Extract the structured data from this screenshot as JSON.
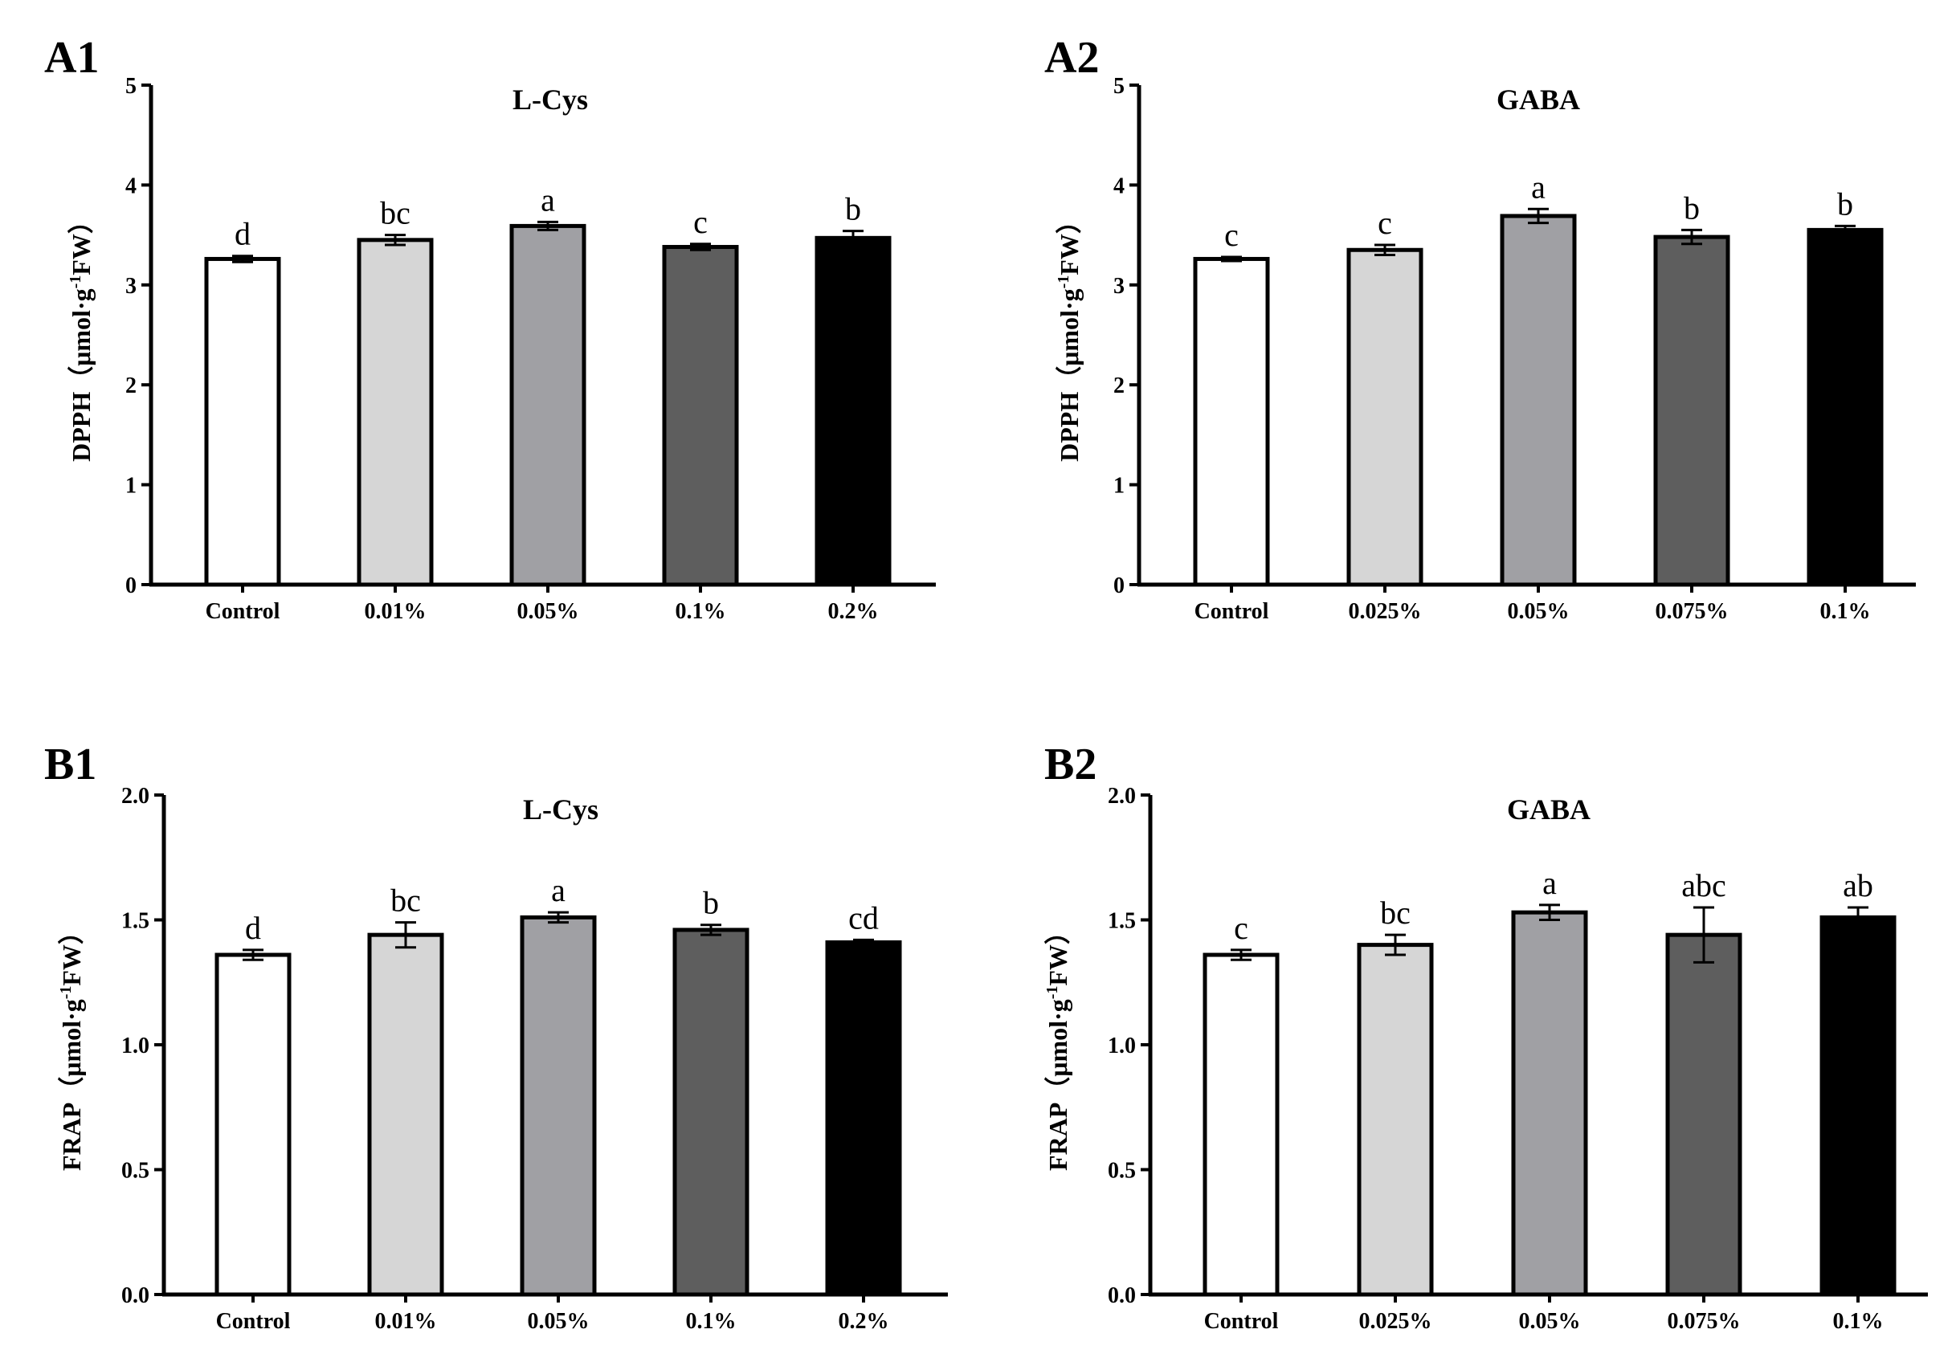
{
  "colors": [
    "#ffffff",
    "#d6d6d6",
    "#a0a0a4",
    "#5e5e5e",
    "#000000"
  ],
  "chart_data": [
    {
      "type": "bar",
      "panel": "A1",
      "title": "L-Cys",
      "ylabel_main": "DPPH（μmol·g",
      "ylabel_sup": "-1",
      "ylabel_end": "FW）",
      "ylim": [
        0,
        5
      ],
      "yticks": [
        "0",
        "1",
        "2",
        "3",
        "4",
        "5"
      ],
      "categories": [
        "Control",
        "0.01%",
        "0.05%",
        "0.1%",
        "0.2%"
      ],
      "values": [
        3.26,
        3.45,
        3.59,
        3.38,
        3.47
      ],
      "errors": [
        0.03,
        0.05,
        0.04,
        0.03,
        0.07
      ],
      "letters": [
        "d",
        "bc",
        "a",
        "c",
        "b"
      ]
    },
    {
      "type": "bar",
      "panel": "A2",
      "title": "GABA",
      "ylabel_main": "DPPH（μmol·g",
      "ylabel_sup": "-1",
      "ylabel_end": "FW）",
      "ylim": [
        0,
        5
      ],
      "yticks": [
        "0",
        "1",
        "2",
        "3",
        "4",
        "5"
      ],
      "categories": [
        "Control",
        "0.025%",
        "0.05%",
        "0.075%",
        "0.1%"
      ],
      "values": [
        3.26,
        3.35,
        3.69,
        3.48,
        3.55
      ],
      "errors": [
        0.02,
        0.05,
        0.07,
        0.07,
        0.04
      ],
      "letters": [
        "c",
        "c",
        "a",
        "b",
        "b"
      ]
    },
    {
      "type": "bar",
      "panel": "B1",
      "title": "L-Cys",
      "ylabel_main": "FRAP（μmol·g",
      "ylabel_sup": "-1",
      "ylabel_end": "FW）",
      "ylim": [
        0,
        2
      ],
      "yticks": [
        "0.0",
        "0.5",
        "1.0",
        "1.5",
        "2.0"
      ],
      "categories": [
        "Control",
        "0.01%",
        "0.05%",
        "0.1%",
        "0.2%"
      ],
      "values": [
        1.36,
        1.44,
        1.51,
        1.46,
        1.41
      ],
      "errors": [
        0.02,
        0.05,
        0.02,
        0.02,
        0.01
      ],
      "letters": [
        "d",
        "bc",
        "a",
        "b",
        "cd"
      ]
    },
    {
      "type": "bar",
      "panel": "B2",
      "title": "GABA",
      "ylabel_main": "FRAP（μmol·g",
      "ylabel_sup": "-1",
      "ylabel_end": "FW）",
      "ylim": [
        0,
        2
      ],
      "yticks": [
        "0.0",
        "0.5",
        "1.0",
        "1.5",
        "2.0"
      ],
      "categories": [
        "Control",
        "0.025%",
        "0.05%",
        "0.075%",
        "0.1%"
      ],
      "values": [
        1.36,
        1.4,
        1.53,
        1.44,
        1.51
      ],
      "errors": [
        0.02,
        0.04,
        0.03,
        0.11,
        0.04
      ],
      "letters": [
        "c",
        "bc",
        "a",
        "abc",
        "ab"
      ]
    }
  ]
}
